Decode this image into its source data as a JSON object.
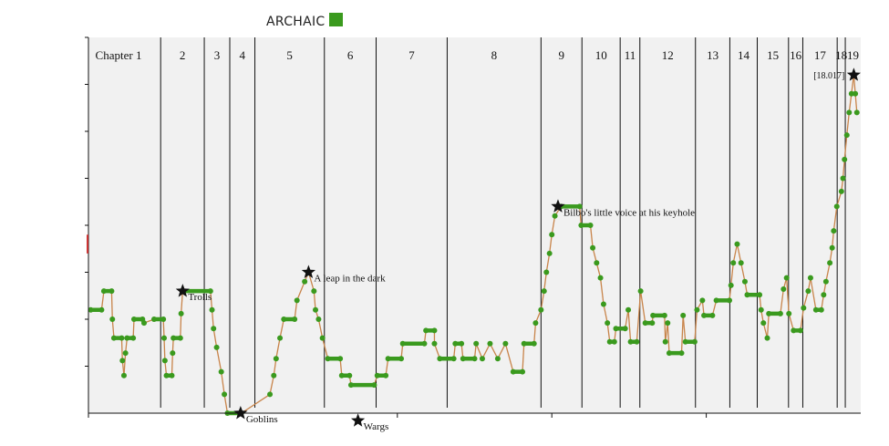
{
  "legend": {
    "label": "ARCHAIC",
    "color": "#3a9a1e"
  },
  "chart_data": {
    "type": "line",
    "title": "",
    "xlabel": "",
    "ylabel": "",
    "xlim": [
      0,
      100
    ],
    "ylim": [
      0,
      20
    ],
    "grid": false,
    "legend_position": "top-left",
    "colors": {
      "line": "#3a9a1e",
      "connector": "#c8844a",
      "background": "#f1f1f1",
      "accent": "#cc3333"
    },
    "chapters": [
      {
        "label": "Chapter 1",
        "start": 0.0
      },
      {
        "label": "2",
        "start": 9.35
      },
      {
        "label": "3",
        "start": 15.0
      },
      {
        "label": "4",
        "start": 18.3
      },
      {
        "label": "5",
        "start": 21.55
      },
      {
        "label": "6",
        "start": 30.55
      },
      {
        "label": "7",
        "start": 37.25
      },
      {
        "label": "8",
        "start": 46.45
      },
      {
        "label": "9",
        "start": 58.6
      },
      {
        "label": "10",
        "start": 63.9
      },
      {
        "label": "11",
        "start": 68.85
      },
      {
        "label": "12",
        "start": 71.4
      },
      {
        "label": "13",
        "start": 78.6
      },
      {
        "label": "14",
        "start": 83.05
      },
      {
        "label": "15",
        "start": 86.6
      },
      {
        "label": "16",
        "start": 90.65
      },
      {
        "label": "17",
        "start": 92.5
      },
      {
        "label": "18",
        "start": 96.95
      },
      {
        "label": "19",
        "start": 98.0
      }
    ],
    "series": [
      {
        "points": [
          [
            0.3,
            5.5
          ],
          [
            1.7,
            5.5
          ],
          [
            2.0,
            6.5
          ],
          [
            3.0,
            6.5
          ],
          [
            3.1,
            5.0
          ],
          [
            3.3,
            4.0
          ],
          [
            4.3,
            4.0
          ],
          [
            4.4,
            2.8
          ],
          [
            4.6,
            2.0
          ],
          [
            4.8,
            3.2
          ],
          [
            5.0,
            4.0
          ],
          [
            5.8,
            4.0
          ],
          [
            5.9,
            5.0
          ],
          [
            7.0,
            5.0
          ],
          [
            7.2,
            4.8
          ],
          [
            8.5,
            5.0
          ],
          [
            9.7,
            5.0
          ],
          [
            9.8,
            4.0
          ],
          [
            9.9,
            2.8
          ],
          [
            10.1,
            2.0
          ],
          [
            10.8,
            2.0
          ],
          [
            10.9,
            3.2
          ],
          [
            11.0,
            4.0
          ],
          [
            11.9,
            4.0
          ],
          [
            12.0,
            5.3
          ],
          [
            12.2,
            6.5
          ],
          [
            15.8,
            6.5
          ],
          [
            16.0,
            5.5
          ],
          [
            16.2,
            4.5
          ],
          [
            16.6,
            3.5
          ],
          [
            17.2,
            2.2
          ],
          [
            17.6,
            1.0
          ],
          [
            18.0,
            0.0
          ],
          [
            19.8,
            0.0
          ],
          [
            23.5,
            1.0
          ],
          [
            24.0,
            2.0
          ],
          [
            24.3,
            2.9
          ],
          [
            24.8,
            4.0
          ],
          [
            25.3,
            5.0
          ],
          [
            26.7,
            5.0
          ],
          [
            27.0,
            6.0
          ],
          [
            28.0,
            7.0
          ],
          [
            28.5,
            7.5
          ],
          [
            29.2,
            6.5
          ],
          [
            29.4,
            5.5
          ],
          [
            29.8,
            5.0
          ],
          [
            30.3,
            4.0
          ],
          [
            31.0,
            2.9
          ],
          [
            32.6,
            2.9
          ],
          [
            32.8,
            2.0
          ],
          [
            33.8,
            2.0
          ],
          [
            34.0,
            1.5
          ],
          [
            37.0,
            1.5
          ],
          [
            37.4,
            2.0
          ],
          [
            38.5,
            2.0
          ],
          [
            38.8,
            2.9
          ],
          [
            40.5,
            2.9
          ],
          [
            40.7,
            3.7
          ],
          [
            43.5,
            3.7
          ],
          [
            43.7,
            4.4
          ],
          [
            44.8,
            4.4
          ],
          [
            44.8,
            3.7
          ],
          [
            45.5,
            2.9
          ],
          [
            47.3,
            2.9
          ],
          [
            47.5,
            3.7
          ],
          [
            48.3,
            3.7
          ],
          [
            48.5,
            2.9
          ],
          [
            50.0,
            2.9
          ],
          [
            50.2,
            3.7
          ],
          [
            51.0,
            2.9
          ],
          [
            52.0,
            3.7
          ],
          [
            53.0,
            2.9
          ],
          [
            54.0,
            3.7
          ],
          [
            55.0,
            2.2
          ],
          [
            56.2,
            2.2
          ],
          [
            56.4,
            3.7
          ],
          [
            57.7,
            3.7
          ],
          [
            57.9,
            4.8
          ],
          [
            58.6,
            5.5
          ],
          [
            59.0,
            6.5
          ],
          [
            59.3,
            7.5
          ],
          [
            59.7,
            8.5
          ],
          [
            60.0,
            9.5
          ],
          [
            60.4,
            10.5
          ],
          [
            61.2,
            11.0
          ],
          [
            63.6,
            11.0
          ],
          [
            63.8,
            10.0
          ],
          [
            65.0,
            10.0
          ],
          [
            65.3,
            8.8
          ],
          [
            65.8,
            8.0
          ],
          [
            66.3,
            7.2
          ],
          [
            66.7,
            5.8
          ],
          [
            67.2,
            4.8
          ],
          [
            67.5,
            3.8
          ],
          [
            68.1,
            3.8
          ],
          [
            68.3,
            4.5
          ],
          [
            69.5,
            4.5
          ],
          [
            69.9,
            5.5
          ],
          [
            70.2,
            3.8
          ],
          [
            71.0,
            3.8
          ],
          [
            71.5,
            6.5
          ],
          [
            72.1,
            4.8
          ],
          [
            73.0,
            4.8
          ],
          [
            73.1,
            5.2
          ],
          [
            74.6,
            5.2
          ],
          [
            74.7,
            3.8
          ],
          [
            75.0,
            4.8
          ],
          [
            75.2,
            3.2
          ],
          [
            76.8,
            3.2
          ],
          [
            77.0,
            5.2
          ],
          [
            77.3,
            3.8
          ],
          [
            78.5,
            3.8
          ],
          [
            78.8,
            5.5
          ],
          [
            79.5,
            6.0
          ],
          [
            79.7,
            5.2
          ],
          [
            80.8,
            5.2
          ],
          [
            81.3,
            6.0
          ],
          [
            83.0,
            6.0
          ],
          [
            83.2,
            6.8
          ],
          [
            83.5,
            8.0
          ],
          [
            84.0,
            9.0
          ],
          [
            84.5,
            8.0
          ],
          [
            85.0,
            7.0
          ],
          [
            85.3,
            6.3
          ],
          [
            86.9,
            6.3
          ],
          [
            87.1,
            5.5
          ],
          [
            87.4,
            4.8
          ],
          [
            87.9,
            4.0
          ],
          [
            88.1,
            5.3
          ],
          [
            89.6,
            5.3
          ],
          [
            90.0,
            6.6
          ],
          [
            90.4,
            7.2
          ],
          [
            90.7,
            5.3
          ],
          [
            91.3,
            4.4
          ],
          [
            92.2,
            4.4
          ],
          [
            92.6,
            5.6
          ],
          [
            93.2,
            6.5
          ],
          [
            93.5,
            7.2
          ],
          [
            94.2,
            5.5
          ],
          [
            94.9,
            5.5
          ],
          [
            95.2,
            6.3
          ],
          [
            95.5,
            7.0
          ],
          [
            96.0,
            8.0
          ],
          [
            96.3,
            8.8
          ],
          [
            96.5,
            9.7
          ],
          [
            96.9,
            11.0
          ],
          [
            97.5,
            11.8
          ],
          [
            97.7,
            12.5
          ],
          [
            97.9,
            13.5
          ],
          [
            98.2,
            14.8
          ],
          [
            98.5,
            16.0
          ],
          [
            98.8,
            17.0
          ],
          [
            99.1,
            18.0
          ],
          [
            99.3,
            17.0
          ],
          [
            99.5,
            16.0
          ]
        ]
      }
    ],
    "annotations": [
      {
        "label": "Trolls",
        "x": 12.2,
        "y": 6.5
      },
      {
        "label": "Goblins",
        "x": 19.7,
        "y": 0.0
      },
      {
        "label": "A leap in the dark",
        "x": 28.5,
        "y": 7.5
      },
      {
        "label": "Wargs",
        "x": 34.9,
        "y": -0.4
      },
      {
        "label": "Bilbo's little voice at his keyhole",
        "x": 60.8,
        "y": 11.0
      },
      {
        "label": "",
        "x": 99.1,
        "y": 18.0,
        "value_label": "[18.017]"
      }
    ]
  }
}
